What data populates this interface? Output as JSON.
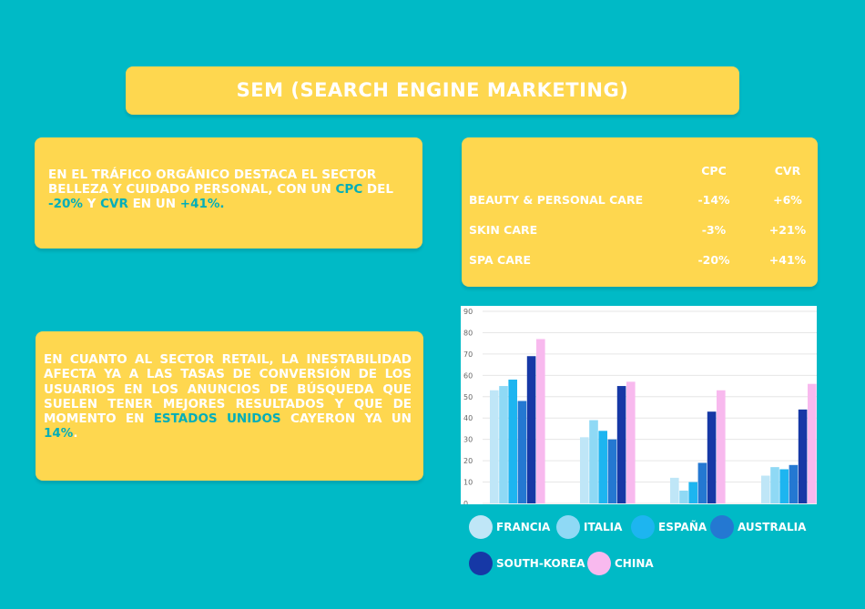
{
  "title": "SEM (Search Engine Marketing)",
  "organic_text": {
    "part1": "En el tráfico orgánico destaca el sector belleza y cuidado personal, con un ",
    "cpc": "CPC",
    "part2": " del ",
    "cpc_value": "-20%",
    "part3": " y ",
    "cvr": "CVR",
    "part4": " en un ",
    "cvr_value": "+41%."
  },
  "retail_text": {
    "part1": "En cuanto al sector retail, la inestabilidad afecta ya a las tasas de conversión de los usuarios en los anuncios de búsqueda que suelen tener mejores resultados y que de momento en ",
    "highlight": "Estados Unidos",
    "part2": " cayeron ya un ",
    "value": "14%",
    "part3": "."
  },
  "table": {
    "headers": [
      "CPC",
      "CVR"
    ],
    "rows": [
      {
        "label": "Beauty & Personal Care",
        "cpc": "-14%",
        "cvr": "+6%"
      },
      {
        "label": "Skin Care",
        "cpc": "-3%",
        "cvr": "+21%"
      },
      {
        "label": "Spa Care",
        "cpc": "-20%",
        "cvr": "+41%"
      }
    ]
  },
  "chart_data": {
    "type": "bar",
    "categories": [
      "",
      "",
      "",
      ""
    ],
    "ylim": [
      0,
      90
    ],
    "yticks": [
      0,
      10,
      20,
      30,
      40,
      50,
      60,
      70,
      80,
      90
    ],
    "grid": true,
    "legend_position": "bottom",
    "series": [
      {
        "name": "Francia",
        "color": "#bfe6f7",
        "values": [
          53,
          31,
          12,
          13
        ]
      },
      {
        "name": "Italia",
        "color": "#8fd9f5",
        "values": [
          55,
          39,
          6,
          17
        ]
      },
      {
        "name": "España",
        "color": "#1db5f0",
        "values": [
          58,
          34,
          10,
          16
        ]
      },
      {
        "name": "Australia",
        "color": "#2478d2",
        "values": [
          48,
          30,
          19,
          18
        ]
      },
      {
        "name": "South-Korea",
        "color": "#1638a6",
        "values": [
          69,
          55,
          43,
          44
        ]
      },
      {
        "name": "China",
        "color": "#f8b9ee",
        "values": [
          77,
          57,
          53,
          56
        ]
      }
    ]
  }
}
